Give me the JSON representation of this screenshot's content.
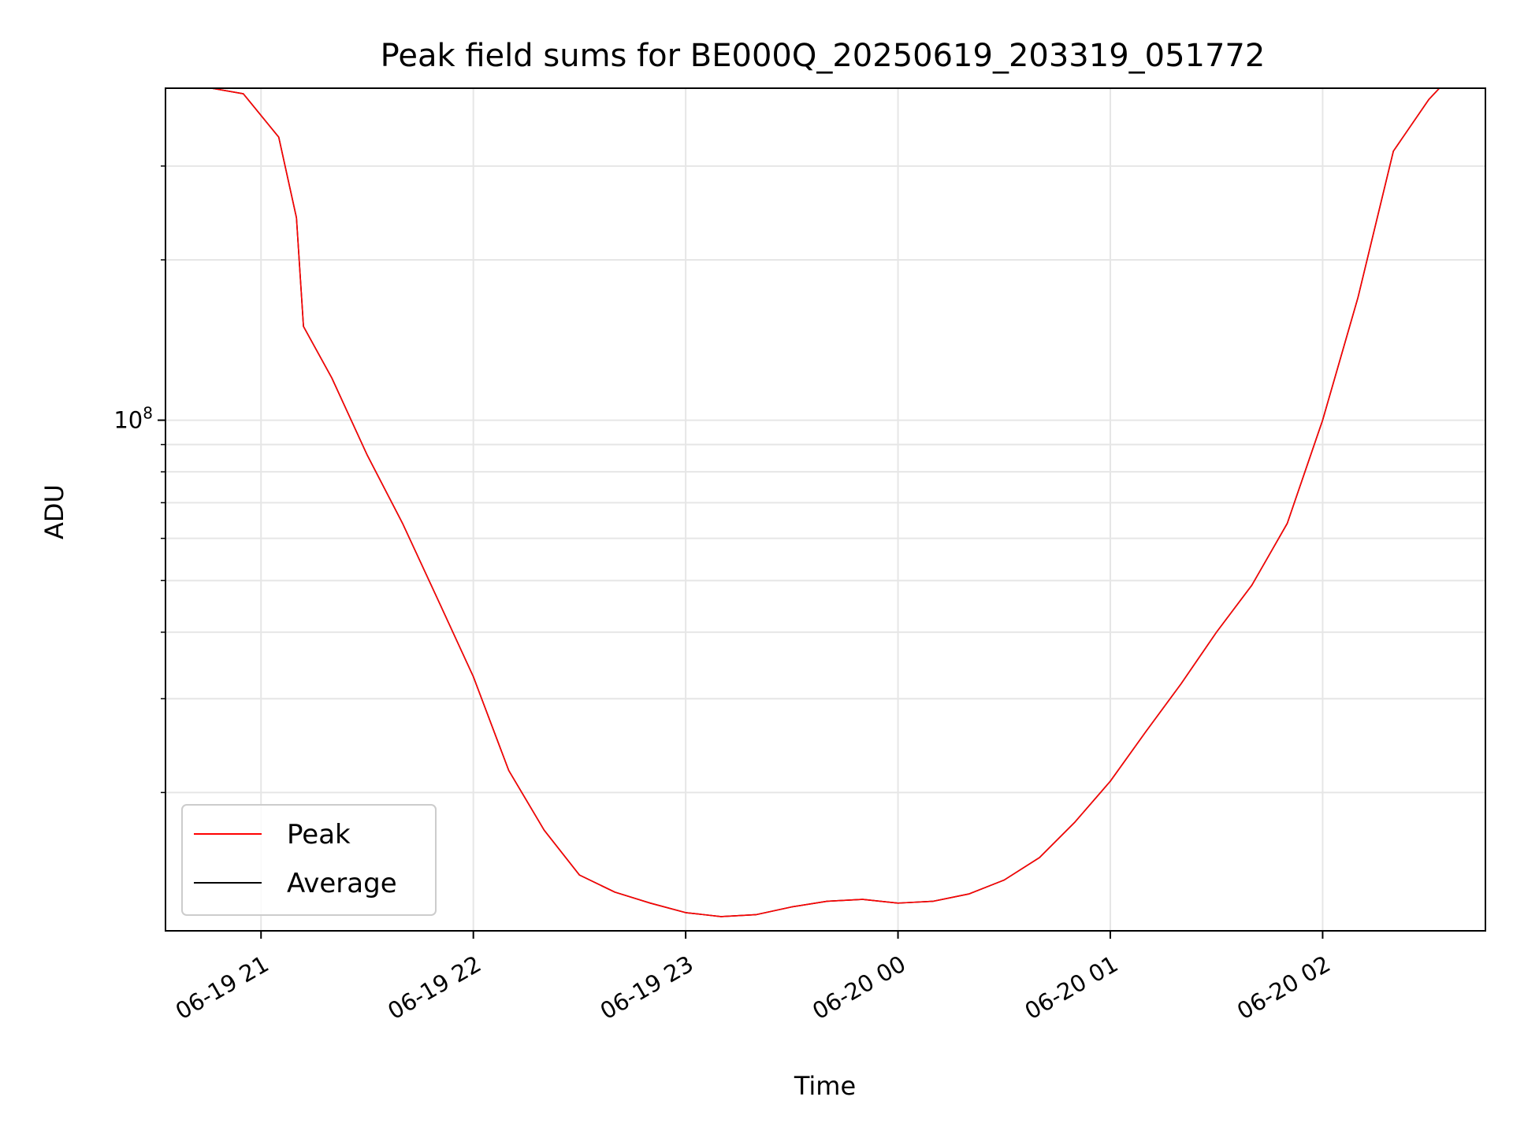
{
  "chart_data": {
    "type": "line",
    "title": "Peak field sums for BE000Q_20250619_203319_051772",
    "xlabel": "Time",
    "ylabel": "ADU",
    "y_scale": "log",
    "ylim": [
      11000000,
      420000000
    ],
    "xlim": [
      "2025-06-19 20:33",
      "2025-06-20 02:46"
    ],
    "x_ticks": [
      {
        "value": "2025-06-19 21:00",
        "label": "06-19 21"
      },
      {
        "value": "2025-06-19 22:00",
        "label": "06-19 22"
      },
      {
        "value": "2025-06-19 23:00",
        "label": "06-19 23"
      },
      {
        "value": "2025-06-20 00:00",
        "label": "06-20 00"
      },
      {
        "value": "2025-06-20 01:00",
        "label": "06-20 01"
      },
      {
        "value": "2025-06-20 02:00",
        "label": "06-20 02"
      }
    ],
    "y_major_ticks": [
      {
        "value": 100000000,
        "label_base": "10",
        "label_exp": "8"
      }
    ],
    "y_minor_ticks": [
      20000000,
      30000000,
      40000000,
      50000000,
      60000000,
      70000000,
      80000000,
      90000000,
      200000000,
      300000000
    ],
    "grid": true,
    "legend": {
      "placement": "lower-left",
      "entries": [
        "Peak",
        "Average"
      ]
    },
    "series": [
      {
        "name": "Peak",
        "color": "#ff0000",
        "x": [
          "2025-06-19 20:33",
          "2025-06-19 20:46",
          "2025-06-19 20:55",
          "2025-06-19 21:05",
          "2025-06-19 21:10",
          "2025-06-19 21:12",
          "2025-06-19 21:20",
          "2025-06-19 21:30",
          "2025-06-19 21:40",
          "2025-06-19 21:50",
          "2025-06-19 22:00",
          "2025-06-19 22:10",
          "2025-06-19 22:20",
          "2025-06-19 22:30",
          "2025-06-19 22:40",
          "2025-06-19 22:50",
          "2025-06-19 23:00",
          "2025-06-19 23:10",
          "2025-06-19 23:20",
          "2025-06-19 23:30",
          "2025-06-19 23:40",
          "2025-06-19 23:50",
          "2025-06-20 00:00",
          "2025-06-20 00:10",
          "2025-06-20 00:20",
          "2025-06-20 00:30",
          "2025-06-20 00:40",
          "2025-06-20 00:50",
          "2025-06-20 01:00",
          "2025-06-20 01:10",
          "2025-06-20 01:20",
          "2025-06-20 01:30",
          "2025-06-20 01:40",
          "2025-06-20 01:45",
          "2025-06-20 01:50",
          "2025-06-20 02:00",
          "2025-06-20 02:10",
          "2025-06-20 02:20",
          "2025-06-20 02:30",
          "2025-06-20 02:33",
          "2025-06-20 02:46"
        ],
        "y": [
          420000000,
          420000000,
          410000000,
          340000000,
          240000000,
          150000000,
          120000000,
          86000000,
          64000000,
          46000000,
          33000000,
          22000000,
          17000000,
          14000000,
          13000000,
          12400000,
          11900000,
          11700000,
          11800000,
          12200000,
          12500000,
          12600000,
          12400000,
          12500000,
          12900000,
          13700000,
          15100000,
          17600000,
          21000000,
          26000000,
          32000000,
          40000000,
          49000000,
          56000000,
          64000000,
          100000000,
          170000000,
          320000000,
          400000000,
          420000000,
          420000000
        ]
      },
      {
        "name": "Average",
        "color": "#000000",
        "x": [
          "2025-06-19 20:33",
          "2025-06-19 20:46",
          "2025-06-19 20:55",
          "2025-06-19 21:05",
          "2025-06-19 21:10",
          "2025-06-19 21:12",
          "2025-06-19 21:20",
          "2025-06-19 21:30",
          "2025-06-19 21:40",
          "2025-06-19 21:50",
          "2025-06-19 22:00",
          "2025-06-19 22:10",
          "2025-06-19 22:20",
          "2025-06-19 22:30",
          "2025-06-19 22:40",
          "2025-06-19 22:50",
          "2025-06-19 23:00",
          "2025-06-19 23:10",
          "2025-06-19 23:20",
          "2025-06-19 23:30",
          "2025-06-19 23:40",
          "2025-06-19 23:50",
          "2025-06-20 00:00",
          "2025-06-20 00:10",
          "2025-06-20 00:20",
          "2025-06-20 00:30",
          "2025-06-20 00:40",
          "2025-06-20 00:50",
          "2025-06-20 01:00",
          "2025-06-20 01:10",
          "2025-06-20 01:20",
          "2025-06-20 01:30",
          "2025-06-20 01:40",
          "2025-06-20 01:45",
          "2025-06-20 01:50",
          "2025-06-20 02:00",
          "2025-06-20 02:10",
          "2025-06-20 02:20",
          "2025-06-20 02:30",
          "2025-06-20 02:33",
          "2025-06-20 02:46"
        ],
        "y": [
          420000000,
          420000000,
          410000000,
          340000000,
          240000000,
          150000000,
          120000000,
          86000000,
          64000000,
          46000000,
          33000000,
          22000000,
          17000000,
          14000000,
          13000000,
          12400000,
          11900000,
          11700000,
          11800000,
          12200000,
          12500000,
          12600000,
          12400000,
          12500000,
          12900000,
          13700000,
          15100000,
          17600000,
          21000000,
          26000000,
          32000000,
          40000000,
          49000000,
          56000000,
          64000000,
          100000000,
          170000000,
          320000000,
          400000000,
          420000000,
          420000000
        ]
      }
    ]
  }
}
